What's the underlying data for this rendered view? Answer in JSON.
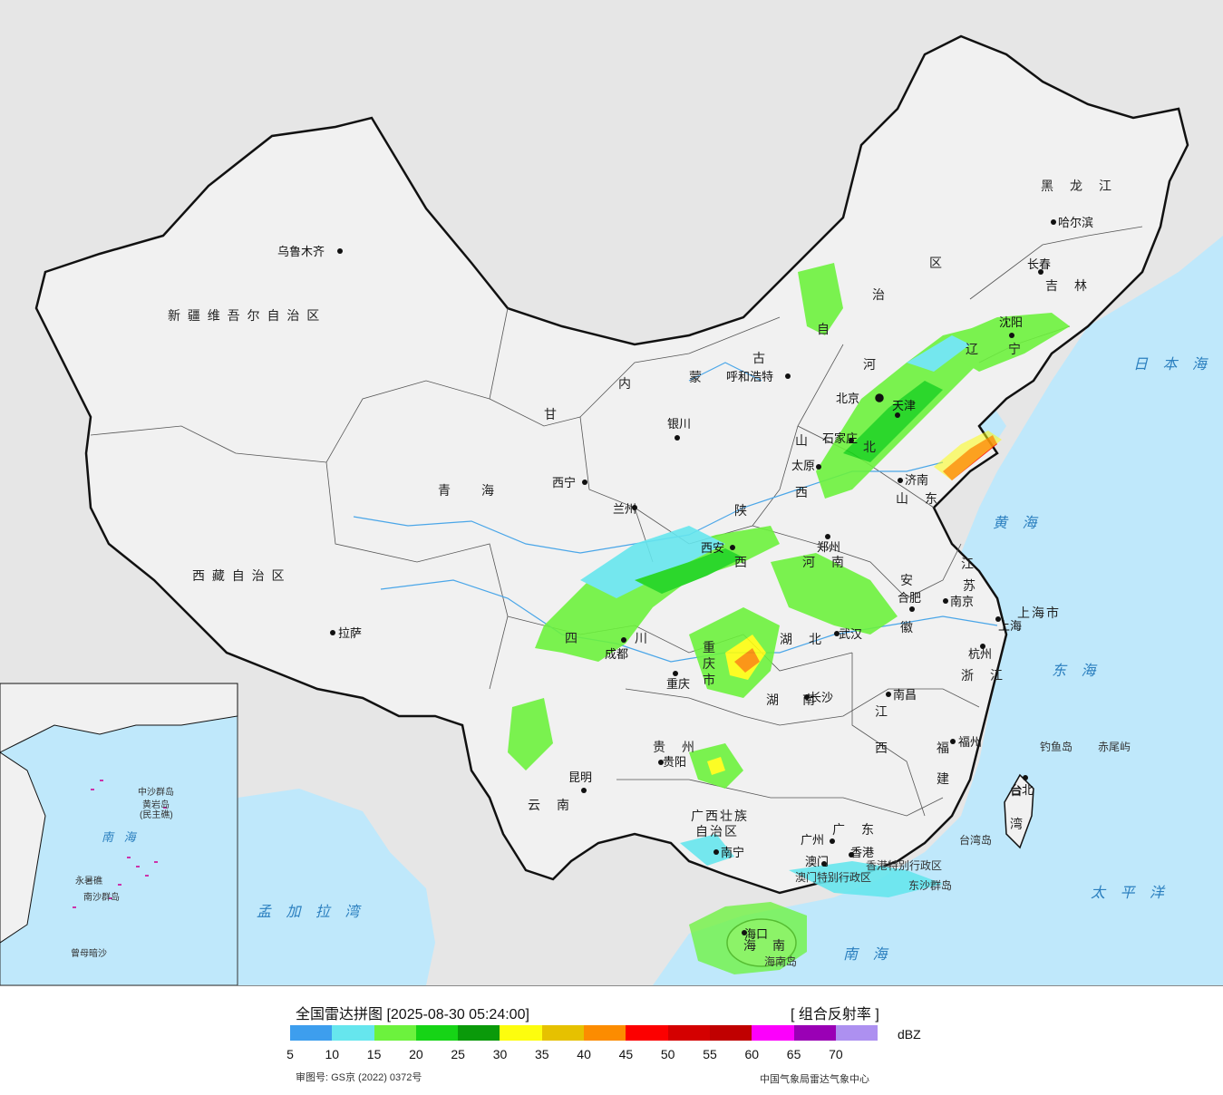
{
  "colors": {
    "sea": "#bfe8fb",
    "land": "#f1f1f1",
    "foreign": "#e6e6e6",
    "border": "#111111",
    "river": "#4aa6e8"
  },
  "cities": [
    {
      "name": "乌鲁木齐"
    },
    {
      "name": "拉萨"
    },
    {
      "name": "西宁"
    },
    {
      "name": "兰州"
    },
    {
      "name": "银川"
    },
    {
      "name": "呼和浩特"
    },
    {
      "name": "北京"
    },
    {
      "name": "天津"
    },
    {
      "name": "石家庄"
    },
    {
      "name": "太原"
    },
    {
      "name": "济南"
    },
    {
      "name": "郑州"
    },
    {
      "name": "西安"
    },
    {
      "name": "成都"
    },
    {
      "name": "重庆"
    },
    {
      "name": "武汉"
    },
    {
      "name": "合肥"
    },
    {
      "name": "南京"
    },
    {
      "name": "上海"
    },
    {
      "name": "杭州"
    },
    {
      "name": "长沙"
    },
    {
      "name": "南昌"
    },
    {
      "name": "福州"
    },
    {
      "name": "台北"
    },
    {
      "name": "贵阳"
    },
    {
      "name": "昆明"
    },
    {
      "name": "南宁"
    },
    {
      "name": "广州"
    },
    {
      "name": "澳门"
    },
    {
      "name": "香港"
    },
    {
      "name": "海口"
    },
    {
      "name": "沈阳"
    },
    {
      "name": "长春"
    },
    {
      "name": "哈尔滨"
    }
  ],
  "provinces": [
    {
      "name": "新 疆 维 吾 尔 自 治 区"
    },
    {
      "name": "西 藏 自 治 区"
    },
    {
      "name": "青　　海"
    },
    {
      "name": "甘"
    },
    {
      "name": "内"
    },
    {
      "name": "蒙"
    },
    {
      "name": "古"
    },
    {
      "name": "自"
    },
    {
      "name": "治"
    },
    {
      "name": "区"
    },
    {
      "name": "黑　龙　江"
    },
    {
      "name": "吉　林"
    },
    {
      "name": "辽"
    },
    {
      "name": "宁"
    },
    {
      "name": "河"
    },
    {
      "name": "北"
    },
    {
      "name": "山"
    },
    {
      "name": "西"
    },
    {
      "name": "山　东"
    },
    {
      "name": "陕"
    },
    {
      "name": "西"
    },
    {
      "name": "河　南"
    },
    {
      "name": "江"
    },
    {
      "name": "苏"
    },
    {
      "name": "安"
    },
    {
      "name": "徽"
    },
    {
      "name": "湖　北"
    },
    {
      "name": "四"
    },
    {
      "name": "川"
    },
    {
      "name": "重"
    },
    {
      "name": "庆"
    },
    {
      "name": "市"
    },
    {
      "name": "湖"
    },
    {
      "name": "南"
    },
    {
      "name": "江"
    },
    {
      "name": "西"
    },
    {
      "name": "浙　江"
    },
    {
      "name": "上海市"
    },
    {
      "name": "福"
    },
    {
      "name": "建"
    },
    {
      "name": "贵　州"
    },
    {
      "name": "云　南"
    },
    {
      "name": "广西壮族"
    },
    {
      "name": "自治区"
    },
    {
      "name": "广　东"
    },
    {
      "name": "海　南"
    },
    {
      "name": "台"
    },
    {
      "name": "湾"
    },
    {
      "name": "香港特别行政区"
    },
    {
      "name": "澳门特别行政区"
    }
  ],
  "seas": [
    {
      "name": "日 本 海"
    },
    {
      "name": "黄 海"
    },
    {
      "name": "东 海"
    },
    {
      "name": "太 平 洋"
    },
    {
      "name": "南 海"
    },
    {
      "name": "孟 加 拉 湾"
    }
  ],
  "islands": [
    {
      "name": "钓鱼岛"
    },
    {
      "name": "赤尾屿"
    },
    {
      "name": "台湾岛"
    },
    {
      "name": "东沙群岛"
    },
    {
      "name": "海南岛"
    }
  ],
  "inset": {
    "labels": [
      {
        "name": "中沙群岛"
      },
      {
        "name": "黄岩岛"
      },
      {
        "name": "(民主礁)"
      },
      {
        "name": "永暑礁"
      },
      {
        "name": "南沙群岛"
      },
      {
        "name": "曾母暗沙"
      }
    ],
    "sea": "南 海"
  },
  "legend": {
    "title": "全国雷达拼图 [2025-08-30 05:24:00]",
    "product": "[ 组合反射率 ]",
    "unit": "dBZ",
    "colors": [
      "#3d9eee",
      "#66e6ee",
      "#6cf23d",
      "#16d416",
      "#0a9a0a",
      "#fdfd0e",
      "#e6c100",
      "#fc8c00",
      "#fc0000",
      "#d40000",
      "#c00000",
      "#fc00fc",
      "#9a00b5",
      "#ad90f0"
    ],
    "ticks": [
      "5",
      "10",
      "15",
      "20",
      "25",
      "30",
      "35",
      "40",
      "45",
      "50",
      "55",
      "60",
      "65",
      "70"
    ],
    "review_number": "审图号: GS京 (2022) 0372号",
    "source": "中国气象局雷达气象中心"
  }
}
